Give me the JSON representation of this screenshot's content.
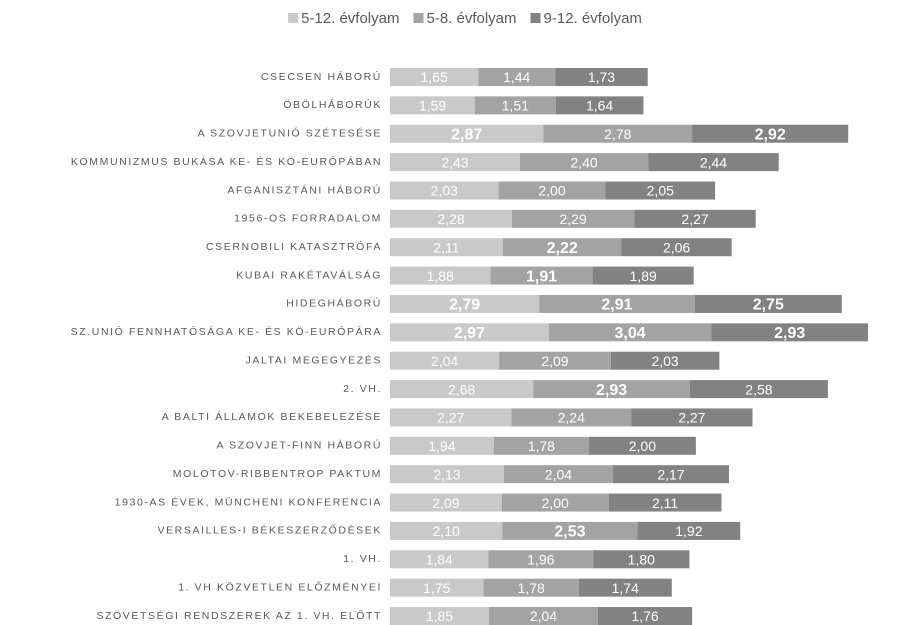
{
  "chart_data": {
    "type": "stacked-bar-horizontal",
    "legend": "top",
    "categories": [
      "CSECSEN HÁBORÚ",
      "ÖBÖLHÁBORÚK",
      "A SZOVJETUNIÓ SZÉTESÉSE",
      "KOMMUNIZMUS BUKÁSA KE- ÉS KÖ-EURÓPÁBAN",
      "AFGANISZTÁNI HÁBORÚ",
      "1956-OS FORRADALOM",
      "CSERNOBILI KATASZTRÓFA",
      "KUBAI RAKÉTAVÁLSÁG",
      "HIDEGHÁBORÚ",
      "SZ.UNIÓ FENNHATÓSÁGA KE- ÉS KÖ-EURÓPÁRA",
      "JALTAI MEGEGYEZÉS",
      "2. VH.",
      "A BALTI ÁLLAMOK BEKEBELEZÉSE",
      "A SZOVJET-FINN HÁBORÚ",
      "MOLOTOV-RIBBENTROP PAKTUM",
      "1930-AS ÉVEK, MÜNCHENI KONFERENCIA",
      "VERSAILLES-I BÉKESZERZŐDÉSEK",
      "1. VH.",
      "1. VH KÖZVETLEN ELŐZMÉNYEI",
      "SZÖVETSÉGI RENDSZEREK AZ 1. VH. ELŐTT"
    ],
    "series": [
      {
        "name": "5-12. évfolyam",
        "color": "#c9c9c9",
        "values": [
          1.65,
          1.59,
          2.87,
          2.43,
          2.03,
          2.28,
          2.11,
          1.88,
          2.79,
          2.97,
          2.04,
          2.68,
          2.27,
          1.94,
          2.13,
          2.09,
          2.1,
          1.84,
          1.75,
          1.85
        ],
        "value_labels": [
          "1,65",
          "1,59",
          "2,87",
          "2,43",
          "2,03",
          "2,28",
          "2,11",
          "1,88",
          "2,79",
          "2,97",
          "2,04",
          "2,68",
          "2,27",
          "1,94",
          "2,13",
          "2,09",
          "2,10",
          "1,84",
          "1,75",
          "1,85"
        ],
        "bold": [
          false,
          false,
          true,
          false,
          false,
          false,
          false,
          false,
          true,
          true,
          false,
          false,
          false,
          false,
          false,
          false,
          false,
          false,
          false,
          false
        ]
      },
      {
        "name": "5-8. évfolyam",
        "color": "#a3a3a3",
        "values": [
          1.44,
          1.51,
          2.78,
          2.4,
          2.0,
          2.29,
          2.22,
          1.91,
          2.91,
          3.04,
          2.09,
          2.93,
          2.24,
          1.78,
          2.04,
          2.0,
          2.53,
          1.96,
          1.78,
          2.04
        ],
        "value_labels": [
          "1,44",
          "1,51",
          "2,78",
          "2,40",
          "2,00",
          "2,29",
          "2,22",
          "1,91",
          "2,91",
          "3,04",
          "2,09",
          "2,93",
          "2,24",
          "1,78",
          "2,04",
          "2,00",
          "2,53",
          "1,96",
          "1,78",
          "2,04"
        ],
        "bold": [
          false,
          false,
          false,
          false,
          false,
          false,
          true,
          true,
          true,
          true,
          false,
          true,
          false,
          false,
          false,
          false,
          true,
          false,
          false,
          false
        ]
      },
      {
        "name": "9-12. évfolyam",
        "color": "#828282",
        "values": [
          1.73,
          1.64,
          2.92,
          2.44,
          2.05,
          2.27,
          2.06,
          1.89,
          2.75,
          2.93,
          2.03,
          2.58,
          2.27,
          2.0,
          2.17,
          2.11,
          1.92,
          1.8,
          1.74,
          1.76
        ],
        "value_labels": [
          "1,73",
          "1,64",
          "2,92",
          "2,44",
          "2,05",
          "2,27",
          "2,06",
          "1,89",
          "2,75",
          "2,93",
          "2,03",
          "2,58",
          "2,27",
          "2,00",
          "2,17",
          "2,11",
          "1,92",
          "1,80",
          "1,74",
          "1,76"
        ],
        "bold": [
          false,
          false,
          true,
          false,
          false,
          false,
          false,
          false,
          true,
          true,
          false,
          false,
          false,
          false,
          false,
          false,
          false,
          false,
          false,
          false
        ]
      }
    ]
  }
}
